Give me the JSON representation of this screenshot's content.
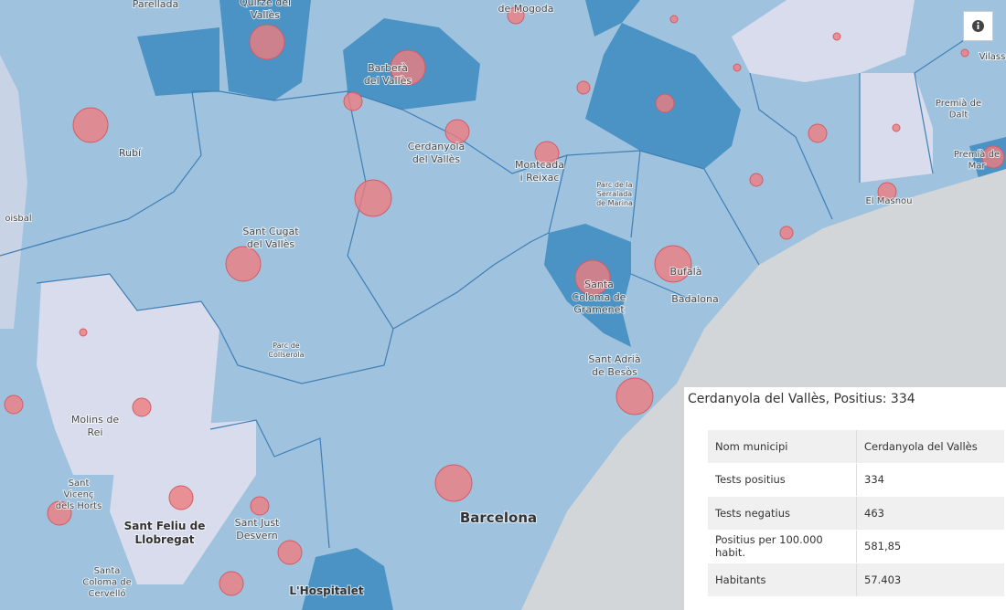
{
  "map": {
    "labels": [
      [
        "Parellada"
      ],
      [
        "Quirze del",
        "Vallès"
      ],
      [
        "de Mogoda"
      ],
      [
        "Barberà",
        "del Vallès"
      ],
      [
        "Rubí"
      ],
      [
        "Cerdanyola",
        "del Vallès"
      ],
      [
        "Montcada",
        "i Reixac"
      ],
      [
        "Parc de la",
        "Serralada",
        "de Marina"
      ],
      [
        "Premià de",
        "Dalt"
      ],
      [
        "Premià de",
        "Mar"
      ],
      [
        "Vilass"
      ],
      [
        "El Masnou"
      ],
      [
        "Sant Cugat",
        "del Vallès"
      ],
      [
        "Bufalà"
      ],
      [
        "Santa",
        "Coloma de",
        "Gramenet"
      ],
      [
        "Badalona"
      ],
      [
        "Parc de",
        "Collserola"
      ],
      [
        "Sant Adrià",
        "de Besòs"
      ],
      [
        "Molins de",
        "Rei"
      ],
      [
        "Sant",
        "Vicenç",
        "dels Horts"
      ],
      [
        "Sant Feliu de",
        "Llobregat"
      ],
      [
        "Sant Just",
        "Desvern"
      ],
      [
        "Barcelona"
      ],
      [
        "Santa",
        "Coloma de",
        "Cervelló"
      ],
      [
        "L'Hospitalet"
      ],
      [
        "oisbal"
      ]
    ]
  },
  "popup": {
    "title": "Cerdanyola del Vallès, Positius: 334",
    "table": {
      "rows": [
        [
          "Nom municipi",
          "Cerdanyola del Vallès"
        ],
        [
          "Tests positius",
          "334"
        ],
        [
          "Tests negatius",
          "463"
        ],
        [
          "Positius per 100.000 habit.",
          "581,85"
        ],
        [
          "Habitants",
          "57.403"
        ]
      ]
    }
  }
}
